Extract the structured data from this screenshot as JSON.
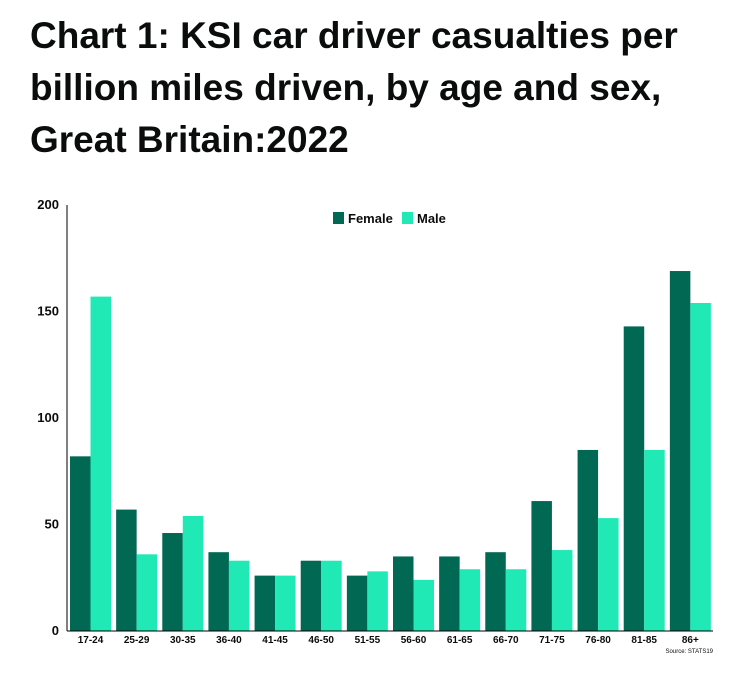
{
  "title_lines": [
    "Chart 1: KSI car driver casualties per",
    "billion miles driven, by age and sex,",
    "Great Britain:2022"
  ],
  "source": "Source: STATS19",
  "colors": {
    "female": "#006853",
    "male": "#20e9b6",
    "axis": "#000000"
  },
  "chart_data": {
    "type": "bar",
    "title": "Chart 1: KSI car driver casualties per billion miles driven, by age and sex, Great Britain:2022",
    "xlabel": "",
    "ylabel": "",
    "ylim": [
      0,
      200
    ],
    "yticks": [
      0,
      50,
      100,
      150,
      200
    ],
    "grid": false,
    "legend": "top-center",
    "categories": [
      "17-24",
      "25-29",
      "30-35",
      "36-40",
      "41-45",
      "46-50",
      "51-55",
      "56-60",
      "61-65",
      "66-70",
      "71-75",
      "76-80",
      "81-85",
      "86+"
    ],
    "series": [
      {
        "name": "Female",
        "values": [
          82,
          57,
          46,
          37,
          26,
          33,
          26,
          35,
          35,
          37,
          61,
          85,
          143,
          169
        ]
      },
      {
        "name": "Male",
        "values": [
          157,
          36,
          54,
          33,
          26,
          33,
          28,
          24,
          29,
          29,
          38,
          53,
          85,
          154
        ]
      }
    ]
  }
}
